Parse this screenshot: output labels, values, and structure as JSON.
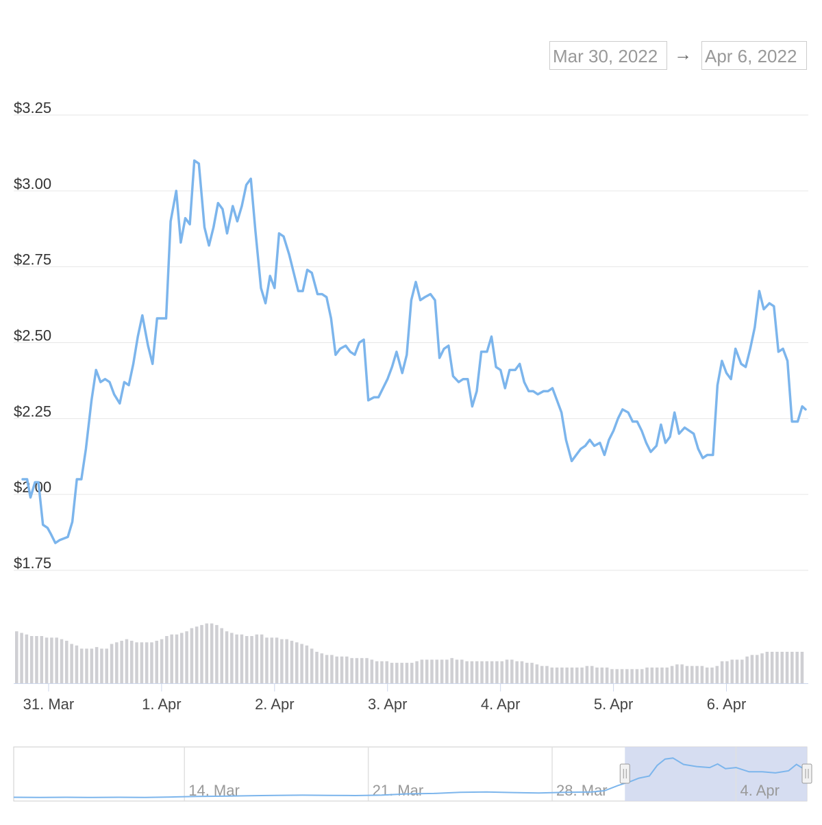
{
  "date_range": {
    "from": "Mar 30, 2022",
    "to": "Apr 6, 2022",
    "arrow": "→"
  },
  "colors": {
    "line": "#7cb5ec",
    "volume": "#cfcfd3",
    "grid": "#e6e6e6",
    "navigator_mask": "#d2d9ef"
  },
  "chart_data": {
    "type": "line",
    "title": "",
    "y_ticks": [
      "$3.25",
      "$3.00",
      "$2.75",
      "$2.50",
      "$2.25",
      "$2.00",
      "$1.75"
    ],
    "y_tick_values": [
      3.25,
      3.0,
      2.75,
      2.5,
      2.25,
      2.0,
      1.75
    ],
    "ylim": [
      1.75,
      3.25
    ],
    "x_ticks": [
      "31. Mar",
      "1. Apr",
      "2. Apr",
      "3. Apr",
      "4. Apr",
      "5. Apr",
      "6. Apr"
    ],
    "x_range_days": [
      -0.23,
      6.7
    ],
    "grid": true,
    "series": [
      {
        "type": "line",
        "x_unit": "days since 31. Mar",
        "points": [
          [
            -0.23,
            2.05
          ],
          [
            -0.19,
            2.05
          ],
          [
            -0.16,
            1.99
          ],
          [
            -0.12,
            2.04
          ],
          [
            -0.09,
            2.04
          ],
          [
            -0.05,
            1.9
          ],
          [
            -0.01,
            1.89
          ],
          [
            0.02,
            1.87
          ],
          [
            0.06,
            1.84
          ],
          [
            0.1,
            1.85
          ],
          [
            0.17,
            1.86
          ],
          [
            0.21,
            1.91
          ],
          [
            0.25,
            2.05
          ],
          [
            0.29,
            2.05
          ],
          [
            0.33,
            2.15
          ],
          [
            0.38,
            2.31
          ],
          [
            0.42,
            2.41
          ],
          [
            0.46,
            2.37
          ],
          [
            0.5,
            2.38
          ],
          [
            0.54,
            2.37
          ],
          [
            0.58,
            2.33
          ],
          [
            0.63,
            2.3
          ],
          [
            0.67,
            2.37
          ],
          [
            0.71,
            2.36
          ],
          [
            0.75,
            2.43
          ],
          [
            0.79,
            2.52
          ],
          [
            0.83,
            2.59
          ],
          [
            0.88,
            2.49
          ],
          [
            0.92,
            2.43
          ],
          [
            0.96,
            2.58
          ],
          [
            1.0,
            2.58
          ],
          [
            1.04,
            2.58
          ],
          [
            1.08,
            2.9
          ],
          [
            1.13,
            3.0
          ],
          [
            1.17,
            2.83
          ],
          [
            1.21,
            2.91
          ],
          [
            1.25,
            2.89
          ],
          [
            1.29,
            3.1
          ],
          [
            1.33,
            3.09
          ],
          [
            1.38,
            2.88
          ],
          [
            1.42,
            2.82
          ],
          [
            1.46,
            2.88
          ],
          [
            1.5,
            2.96
          ],
          [
            1.54,
            2.94
          ],
          [
            1.58,
            2.86
          ],
          [
            1.63,
            2.95
          ],
          [
            1.67,
            2.9
          ],
          [
            1.71,
            2.95
          ],
          [
            1.75,
            3.02
          ],
          [
            1.79,
            3.04
          ],
          [
            1.83,
            2.87
          ],
          [
            1.88,
            2.68
          ],
          [
            1.92,
            2.63
          ],
          [
            1.96,
            2.72
          ],
          [
            2.0,
            2.68
          ],
          [
            2.04,
            2.86
          ],
          [
            2.08,
            2.85
          ],
          [
            2.13,
            2.79
          ],
          [
            2.17,
            2.73
          ],
          [
            2.21,
            2.67
          ],
          [
            2.25,
            2.67
          ],
          [
            2.29,
            2.74
          ],
          [
            2.33,
            2.73
          ],
          [
            2.38,
            2.66
          ],
          [
            2.42,
            2.66
          ],
          [
            2.46,
            2.65
          ],
          [
            2.5,
            2.58
          ],
          [
            2.54,
            2.46
          ],
          [
            2.58,
            2.48
          ],
          [
            2.63,
            2.49
          ],
          [
            2.67,
            2.47
          ],
          [
            2.71,
            2.46
          ],
          [
            2.75,
            2.5
          ],
          [
            2.79,
            2.51
          ],
          [
            2.83,
            2.31
          ],
          [
            2.88,
            2.32
          ],
          [
            2.92,
            2.32
          ],
          [
            2.96,
            2.35
          ],
          [
            3.0,
            2.38
          ],
          [
            3.04,
            2.42
          ],
          [
            3.08,
            2.47
          ],
          [
            3.13,
            2.4
          ],
          [
            3.17,
            2.46
          ],
          [
            3.21,
            2.64
          ],
          [
            3.25,
            2.7
          ],
          [
            3.29,
            2.64
          ],
          [
            3.33,
            2.65
          ],
          [
            3.38,
            2.66
          ],
          [
            3.42,
            2.64
          ],
          [
            3.46,
            2.45
          ],
          [
            3.5,
            2.48
          ],
          [
            3.54,
            2.49
          ],
          [
            3.58,
            2.39
          ],
          [
            3.63,
            2.37
          ],
          [
            3.67,
            2.38
          ],
          [
            3.71,
            2.38
          ],
          [
            3.75,
            2.29
          ],
          [
            3.79,
            2.34
          ],
          [
            3.83,
            2.47
          ],
          [
            3.88,
            2.47
          ],
          [
            3.92,
            2.52
          ],
          [
            3.96,
            2.42
          ],
          [
            4.0,
            2.41
          ],
          [
            4.04,
            2.35
          ],
          [
            4.08,
            2.41
          ],
          [
            4.13,
            2.41
          ],
          [
            4.17,
            2.43
          ],
          [
            4.21,
            2.37
          ],
          [
            4.25,
            2.34
          ],
          [
            4.29,
            2.34
          ],
          [
            4.33,
            2.33
          ],
          [
            4.38,
            2.34
          ],
          [
            4.42,
            2.34
          ],
          [
            4.46,
            2.35
          ],
          [
            4.5,
            2.31
          ],
          [
            4.54,
            2.27
          ],
          [
            4.58,
            2.18
          ],
          [
            4.63,
            2.11
          ],
          [
            4.67,
            2.13
          ],
          [
            4.71,
            2.15
          ],
          [
            4.75,
            2.16
          ],
          [
            4.79,
            2.18
          ],
          [
            4.83,
            2.16
          ],
          [
            4.88,
            2.17
          ],
          [
            4.92,
            2.13
          ],
          [
            4.96,
            2.18
          ],
          [
            5.0,
            2.21
          ],
          [
            5.04,
            2.25
          ],
          [
            5.08,
            2.28
          ],
          [
            5.13,
            2.27
          ],
          [
            5.17,
            2.24
          ],
          [
            5.21,
            2.24
          ],
          [
            5.25,
            2.21
          ],
          [
            5.29,
            2.17
          ],
          [
            5.33,
            2.14
          ],
          [
            5.38,
            2.16
          ],
          [
            5.42,
            2.23
          ],
          [
            5.46,
            2.17
          ],
          [
            5.5,
            2.19
          ],
          [
            5.54,
            2.27
          ],
          [
            5.58,
            2.2
          ],
          [
            5.63,
            2.22
          ],
          [
            5.67,
            2.21
          ],
          [
            5.71,
            2.2
          ],
          [
            5.75,
            2.15
          ],
          [
            5.79,
            2.12
          ],
          [
            5.83,
            2.13
          ],
          [
            5.88,
            2.13
          ],
          [
            5.92,
            2.36
          ],
          [
            5.96,
            2.44
          ],
          [
            6.0,
            2.4
          ],
          [
            6.04,
            2.38
          ],
          [
            6.08,
            2.48
          ],
          [
            6.13,
            2.43
          ],
          [
            6.17,
            2.42
          ],
          [
            6.21,
            2.48
          ],
          [
            6.25,
            2.55
          ],
          [
            6.29,
            2.67
          ],
          [
            6.33,
            2.61
          ],
          [
            6.38,
            2.63
          ],
          [
            6.42,
            2.62
          ],
          [
            6.46,
            2.47
          ],
          [
            6.5,
            2.48
          ],
          [
            6.54,
            2.44
          ],
          [
            6.58,
            2.24
          ],
          [
            6.63,
            2.24
          ],
          [
            6.67,
            2.29
          ],
          [
            6.7,
            2.28
          ]
        ]
      },
      {
        "type": "column",
        "x_unit": "days since 31. Mar",
        "values": [
          33,
          32,
          31,
          30,
          30,
          30,
          29,
          29,
          29,
          28,
          27,
          25,
          24,
          22,
          22,
          22,
          23,
          22,
          22,
          25,
          26,
          27,
          28,
          27,
          26,
          26,
          26,
          26,
          27,
          28,
          30,
          31,
          31,
          32,
          33,
          35,
          36,
          37,
          38,
          38,
          37,
          35,
          33,
          32,
          31,
          31,
          30,
          30,
          31,
          31,
          29,
          29,
          29,
          28,
          28,
          27,
          26,
          25,
          24,
          22,
          20,
          19,
          18,
          18,
          17,
          17,
          17,
          16,
          16,
          16,
          16,
          15,
          14,
          14,
          14,
          13,
          13,
          13,
          13,
          13,
          14,
          15,
          15,
          15,
          15,
          15,
          15,
          16,
          15,
          15,
          14,
          14,
          14,
          14,
          14,
          14,
          14,
          14,
          15,
          15,
          14,
          14,
          13,
          13,
          12,
          11,
          11,
          10,
          10,
          10,
          10,
          10,
          10,
          10,
          11,
          11,
          10,
          10,
          10,
          9,
          9,
          9,
          9,
          9,
          9,
          9,
          10,
          10,
          10,
          10,
          10,
          11,
          12,
          12,
          11,
          11,
          11,
          11,
          10,
          10,
          11,
          14,
          14,
          15,
          15,
          15,
          17,
          18,
          18,
          19,
          20,
          20,
          20,
          20,
          20,
          20,
          20,
          20
        ]
      }
    ],
    "navigator": {
      "x_ticks": [
        "14. Mar",
        "21. Mar",
        "28. Mar",
        "4. Apr"
      ],
      "x_unit": "days since 31. Mar",
      "x_range_days": [
        -23.5,
        6.7
      ],
      "selected_range_days": [
        -0.23,
        6.7
      ],
      "points": [
        [
          -23.5,
          1.05
        ],
        [
          -22.5,
          1.04
        ],
        [
          -21.5,
          1.05
        ],
        [
          -20.5,
          1.04
        ],
        [
          -19.5,
          1.05
        ],
        [
          -18.5,
          1.04
        ],
        [
          -17.5,
          1.06
        ],
        [
          -16.5,
          1.09
        ],
        [
          -15.5,
          1.1
        ],
        [
          -14.5,
          1.12
        ],
        [
          -13.5,
          1.14
        ],
        [
          -12.5,
          1.15
        ],
        [
          -11.5,
          1.14
        ],
        [
          -10.5,
          1.13
        ],
        [
          -9.5,
          1.15
        ],
        [
          -8.5,
          1.21
        ],
        [
          -7.5,
          1.23
        ],
        [
          -6.5,
          1.28
        ],
        [
          -5.5,
          1.3
        ],
        [
          -4.5,
          1.27
        ],
        [
          -3.5,
          1.25
        ],
        [
          -2.5,
          1.28
        ],
        [
          -1.5,
          1.3
        ],
        [
          -1.0,
          1.36
        ],
        [
          -0.5,
          1.6
        ],
        [
          0.0,
          1.8
        ],
        [
          0.3,
          1.95
        ],
        [
          0.7,
          2.05
        ],
        [
          1.0,
          2.55
        ],
        [
          1.3,
          2.85
        ],
        [
          1.6,
          2.9
        ],
        [
          2.0,
          2.6
        ],
        [
          2.5,
          2.5
        ],
        [
          3.0,
          2.45
        ],
        [
          3.3,
          2.62
        ],
        [
          3.6,
          2.4
        ],
        [
          4.0,
          2.45
        ],
        [
          4.5,
          2.25
        ],
        [
          5.0,
          2.25
        ],
        [
          5.5,
          2.2
        ],
        [
          6.0,
          2.3
        ],
        [
          6.3,
          2.6
        ],
        [
          6.7,
          2.3
        ]
      ]
    }
  }
}
